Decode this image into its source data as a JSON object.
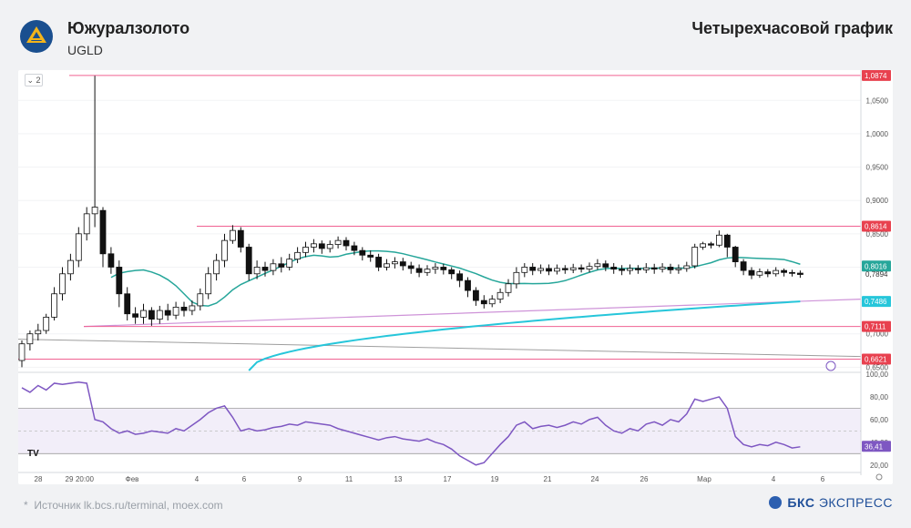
{
  "header": {
    "company": "Южуралзолото",
    "ticker": "UGLD",
    "timeframe": "Четырехчасовой график"
  },
  "footer": {
    "source": "Источник lk.bcs.ru/terminal, moex.com",
    "brand_a": "БКС",
    "brand_b": "ЭКСПРЕСС"
  },
  "controls": {
    "collapse_label": "2",
    "tv_label": "TV"
  },
  "colors": {
    "candle_up": "#ffffff",
    "candle_down": "#111111",
    "ma_fast": "#26a69a",
    "ma_slow": "#26c6da",
    "rsi": "#7e57c2",
    "level": "#f06292",
    "trend_purple": "#ce93d8",
    "trend_gray": "#9e9e9e"
  },
  "chart_data": {
    "type": "candlestick",
    "price_axis": {
      "ticks": [
        "1,0500",
        "1,0000",
        "0,9500",
        "0,9000",
        "0,8500",
        "0,8000",
        "0,7000",
        "0,6500"
      ],
      "ylim": [
        0.645,
        1.09
      ]
    },
    "rsi_axis": {
      "ticks": [
        "100,00",
        "80,00",
        "60,00",
        "40,00",
        "20,00"
      ],
      "ylim": [
        15,
        100
      ],
      "band": [
        30,
        70
      ],
      "mid": 50,
      "current": "36,41"
    },
    "time_axis": {
      "labels": [
        "28",
        "29",
        "20:00",
        "Фев",
        "4",
        "6",
        "9",
        "11",
        "13",
        "17",
        "19",
        "21",
        "24",
        "26",
        "Мар",
        "4",
        "6"
      ]
    },
    "levels": [
      {
        "value": 1.0874,
        "label": "1,0874"
      },
      {
        "value": 0.8614,
        "label": "0,8614"
      },
      {
        "value": 0.7111,
        "label": "0,7111"
      },
      {
        "value": 0.6621,
        "label": "0,6621"
      }
    ],
    "ma_labels": {
      "fast": {
        "value": 0.8016,
        "label": "0,8016"
      },
      "slow": {
        "value": 0.7486,
        "label": "0,7486"
      }
    },
    "last_price": {
      "value": 0.7894,
      "label": "0,7894"
    },
    "candles": [
      [
        0.66,
        0.685,
        0.65,
        0.69
      ],
      [
        0.685,
        0.7,
        0.675,
        0.705
      ],
      [
        0.7,
        0.705,
        0.69,
        0.715
      ],
      [
        0.705,
        0.725,
        0.7,
        0.73
      ],
      [
        0.725,
        0.76,
        0.72,
        0.77
      ],
      [
        0.76,
        0.79,
        0.75,
        0.8
      ],
      [
        0.79,
        0.81,
        0.78,
        0.82
      ],
      [
        0.81,
        0.85,
        0.8,
        0.86
      ],
      [
        0.85,
        0.88,
        0.84,
        0.89
      ],
      [
        0.88,
        0.89,
        0.86,
        1.087
      ],
      [
        0.885,
        0.82,
        0.8,
        0.89
      ],
      [
        0.82,
        0.8,
        0.79,
        0.83
      ],
      [
        0.8,
        0.76,
        0.74,
        0.81
      ],
      [
        0.76,
        0.73,
        0.72,
        0.77
      ],
      [
        0.73,
        0.725,
        0.715,
        0.74
      ],
      [
        0.725,
        0.735,
        0.715,
        0.745
      ],
      [
        0.735,
        0.722,
        0.712,
        0.74
      ],
      [
        0.722,
        0.735,
        0.715,
        0.742
      ],
      [
        0.735,
        0.728,
        0.72,
        0.745
      ],
      [
        0.728,
        0.74,
        0.722,
        0.748
      ],
      [
        0.74,
        0.735,
        0.726,
        0.748
      ],
      [
        0.735,
        0.742,
        0.728,
        0.75
      ],
      [
        0.742,
        0.76,
        0.735,
        0.768
      ],
      [
        0.76,
        0.79,
        0.752,
        0.8
      ],
      [
        0.79,
        0.81,
        0.78,
        0.82
      ],
      [
        0.81,
        0.84,
        0.8,
        0.85
      ],
      [
        0.84,
        0.855,
        0.835,
        0.863
      ],
      [
        0.855,
        0.83,
        0.822,
        0.86
      ],
      [
        0.83,
        0.79,
        0.78,
        0.835
      ],
      [
        0.79,
        0.8,
        0.782,
        0.81
      ],
      [
        0.8,
        0.795,
        0.786,
        0.808
      ],
      [
        0.795,
        0.805,
        0.788,
        0.812
      ],
      [
        0.805,
        0.8,
        0.792,
        0.815
      ],
      [
        0.8,
        0.812,
        0.795,
        0.82
      ],
      [
        0.812,
        0.822,
        0.806,
        0.83
      ],
      [
        0.822,
        0.83,
        0.815,
        0.838
      ],
      [
        0.83,
        0.835,
        0.822,
        0.842
      ],
      [
        0.835,
        0.828,
        0.82,
        0.84
      ],
      [
        0.828,
        0.834,
        0.822,
        0.84
      ],
      [
        0.834,
        0.84,
        0.828,
        0.846
      ],
      [
        0.84,
        0.832,
        0.825,
        0.845
      ],
      [
        0.832,
        0.825,
        0.818,
        0.838
      ],
      [
        0.825,
        0.818,
        0.81,
        0.83
      ],
      [
        0.818,
        0.815,
        0.808,
        0.825
      ],
      [
        0.815,
        0.8,
        0.794,
        0.82
      ],
      [
        0.8,
        0.805,
        0.795,
        0.812
      ],
      [
        0.805,
        0.808,
        0.798,
        0.815
      ],
      [
        0.808,
        0.802,
        0.795,
        0.814
      ],
      [
        0.802,
        0.798,
        0.79,
        0.808
      ],
      [
        0.798,
        0.792,
        0.785,
        0.804
      ],
      [
        0.792,
        0.797,
        0.787,
        0.803
      ],
      [
        0.797,
        0.8,
        0.79,
        0.806
      ],
      [
        0.8,
        0.796,
        0.789,
        0.805
      ],
      [
        0.796,
        0.79,
        0.782,
        0.8
      ],
      [
        0.79,
        0.78,
        0.77,
        0.795
      ],
      [
        0.78,
        0.765,
        0.755,
        0.785
      ],
      [
        0.765,
        0.75,
        0.742,
        0.77
      ],
      [
        0.75,
        0.745,
        0.738,
        0.758
      ],
      [
        0.745,
        0.752,
        0.74,
        0.758
      ],
      [
        0.752,
        0.762,
        0.746,
        0.768
      ],
      [
        0.762,
        0.775,
        0.756,
        0.782
      ],
      [
        0.775,
        0.792,
        0.768,
        0.8
      ],
      [
        0.792,
        0.8,
        0.785,
        0.806
      ],
      [
        0.8,
        0.795,
        0.788,
        0.806
      ],
      [
        0.795,
        0.798,
        0.79,
        0.804
      ],
      [
        0.798,
        0.794,
        0.788,
        0.804
      ],
      [
        0.794,
        0.798,
        0.789,
        0.804
      ],
      [
        0.798,
        0.796,
        0.79,
        0.803
      ],
      [
        0.796,
        0.799,
        0.791,
        0.805
      ],
      [
        0.799,
        0.797,
        0.792,
        0.804
      ],
      [
        0.797,
        0.801,
        0.792,
        0.807
      ],
      [
        0.801,
        0.805,
        0.796,
        0.812
      ],
      [
        0.805,
        0.8,
        0.794,
        0.81
      ],
      [
        0.8,
        0.797,
        0.79,
        0.806
      ],
      [
        0.797,
        0.795,
        0.788,
        0.803
      ],
      [
        0.795,
        0.798,
        0.789,
        0.804
      ],
      [
        0.798,
        0.796,
        0.79,
        0.803
      ],
      [
        0.796,
        0.799,
        0.791,
        0.806
      ],
      [
        0.799,
        0.797,
        0.79,
        0.805
      ],
      [
        0.797,
        0.8,
        0.792,
        0.806
      ],
      [
        0.8,
        0.796,
        0.79,
        0.805
      ],
      [
        0.796,
        0.798,
        0.79,
        0.804
      ],
      [
        0.798,
        0.802,
        0.793,
        0.808
      ],
      [
        0.802,
        0.83,
        0.798,
        0.835
      ],
      [
        0.83,
        0.835,
        0.826,
        0.838
      ],
      [
        0.835,
        0.833,
        0.828,
        0.838
      ],
      [
        0.833,
        0.848,
        0.83,
        0.855
      ],
      [
        0.848,
        0.83,
        0.815,
        0.85
      ],
      [
        0.83,
        0.808,
        0.8,
        0.832
      ],
      [
        0.808,
        0.795,
        0.788,
        0.812
      ],
      [
        0.795,
        0.788,
        0.782,
        0.8
      ],
      [
        0.788,
        0.793,
        0.784,
        0.798
      ],
      [
        0.793,
        0.79,
        0.785,
        0.797
      ],
      [
        0.79,
        0.795,
        0.786,
        0.8
      ],
      [
        0.795,
        0.792,
        0.786,
        0.798
      ],
      [
        0.792,
        0.791,
        0.786,
        0.796
      ],
      [
        0.791,
        0.789,
        0.784,
        0.795
      ]
    ],
    "rsi": [
      88,
      84,
      90,
      86,
      92,
      91,
      92,
      93,
      92,
      60,
      58,
      52,
      48,
      50,
      47,
      48,
      50,
      49,
      48,
      52,
      50,
      55,
      60,
      66,
      70,
      72,
      62,
      50,
      52,
      50,
      51,
      53,
      54,
      56,
      55,
      58,
      57,
      56,
      55,
      52,
      50,
      48,
      46,
      44,
      42,
      44,
      45,
      43,
      42,
      41,
      43,
      40,
      38,
      34,
      28,
      24,
      20,
      22,
      30,
      38,
      45,
      55,
      58,
      52,
      54,
      55,
      53,
      55,
      58,
      56,
      60,
      62,
      55,
      50,
      48,
      52,
      50,
      56,
      58,
      55,
      60,
      58,
      65,
      78,
      76,
      78,
      80,
      70,
      45,
      38,
      36,
      38,
      37,
      40,
      38,
      35,
      36
    ]
  }
}
